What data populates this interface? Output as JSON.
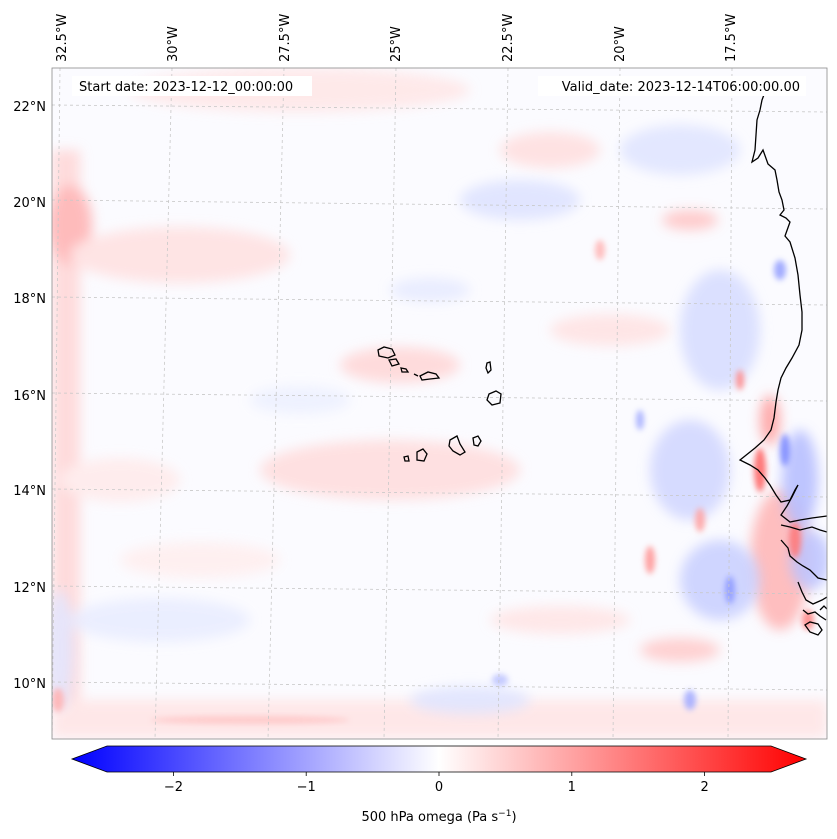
{
  "map": {
    "start_date_text": "Start date: 2023-12-12_00:00:00",
    "valid_date_text": "Valid_date: 2023-12-14T06:00:00.00",
    "lon_ticks": [
      "32.5°W",
      "30°W",
      "27.5°W",
      "25°W",
      "22.5°W",
      "20°W",
      "17.5°W"
    ],
    "lat_ticks": [
      "22°N",
      "20°N",
      "18°N",
      "16°N",
      "14°N",
      "12°N",
      "10°N"
    ],
    "colors": {
      "negative": "#0000ff",
      "neutral": "#ffffff",
      "positive": "#ff0000",
      "coastline": "#000000",
      "gridline": "#c8c8c8"
    }
  },
  "colorbar": {
    "label_main": "500 hPa omega (Pa s",
    "label_sup": "−1",
    "label_close": ")",
    "range": [
      -2.75,
      2.75
    ],
    "ticks": [
      "−2",
      "−1",
      "0",
      "1",
      "2"
    ],
    "tick_values": [
      -2,
      -1,
      0,
      1,
      2
    ]
  }
}
